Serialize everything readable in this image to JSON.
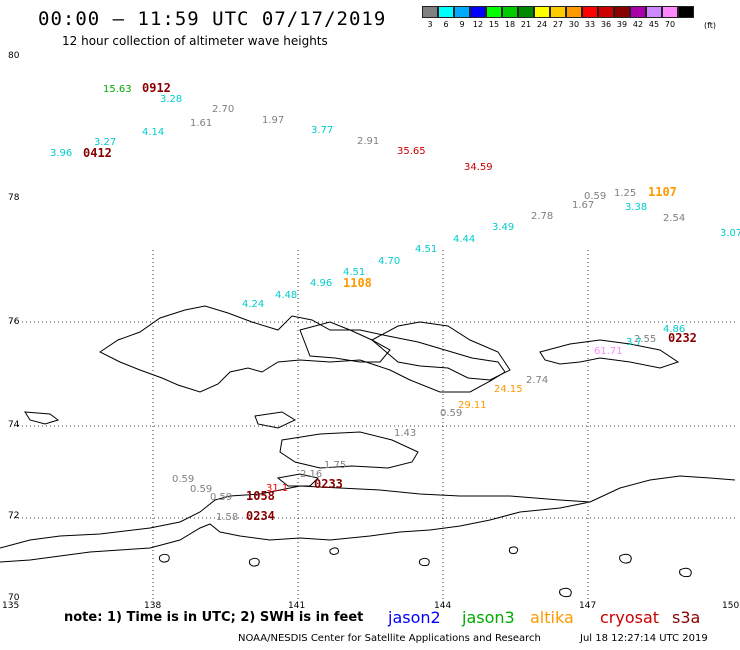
{
  "header": {
    "title": "00:00 – 11:59 UTC 07/17/2019",
    "subtitle": "12 hour collection of altimeter wave heights"
  },
  "legend": {
    "unit": "(ft)",
    "bins": [
      {
        "label": "3",
        "color": "#808080"
      },
      {
        "label": "6",
        "color": "#00ffff"
      },
      {
        "label": "9",
        "color": "#00aaff"
      },
      {
        "label": "12",
        "color": "#0000ff"
      },
      {
        "label": "15",
        "color": "#00ff00"
      },
      {
        "label": "18",
        "color": "#00cc00"
      },
      {
        "label": "21",
        "color": "#008800"
      },
      {
        "label": "24",
        "color": "#ffff00"
      },
      {
        "label": "27",
        "color": "#ffcc00"
      },
      {
        "label": "30",
        "color": "#ff9900"
      },
      {
        "label": "33",
        "color": "#ff0000"
      },
      {
        "label": "36",
        "color": "#cc0000"
      },
      {
        "label": "39",
        "color": "#880000"
      },
      {
        "label": "42",
        "color": "#aa00aa"
      },
      {
        "label": "45",
        "color": "#cc88ff"
      },
      {
        "label": "70",
        "color": "#ff88ff"
      },
      {
        "label": "",
        "color": "#000000"
      }
    ]
  },
  "map": {
    "lat_labels": [
      "80",
      "78",
      "76",
      "74",
      "72",
      "70"
    ],
    "lon_labels": [
      "135",
      "138",
      "141",
      "144",
      "147",
      "150"
    ],
    "wave_heights": [
      {
        "text": "15.63",
        "color": "#00aa00"
      },
      {
        "text": "3.28",
        "color": "#00cccc"
      },
      {
        "text": "2.70",
        "color": "#808080"
      },
      {
        "text": "1.61",
        "color": "#808080"
      },
      {
        "text": "1.97",
        "color": "#808080"
      },
      {
        "text": "3.77",
        "color": "#00cccc"
      },
      {
        "text": "4.14",
        "color": "#00cccc"
      },
      {
        "text": "3.27",
        "color": "#00cccc"
      },
      {
        "text": "3.96",
        "color": "#00cccc"
      },
      {
        "text": "2.91",
        "color": "#808080"
      },
      {
        "text": "35.65",
        "color": "#cc0000"
      },
      {
        "text": "34.59",
        "color": "#cc0000"
      },
      {
        "text": "0.59",
        "color": "#808080"
      },
      {
        "text": "1.25",
        "color": "#808080"
      },
      {
        "text": "1.67",
        "color": "#808080"
      },
      {
        "text": "3.38",
        "color": "#00cccc"
      },
      {
        "text": "2.78",
        "color": "#808080"
      },
      {
        "text": "2.54",
        "color": "#808080"
      },
      {
        "text": "3.07",
        "color": "#00cccc"
      },
      {
        "text": "3.49",
        "color": "#00cccc"
      },
      {
        "text": "4.44",
        "color": "#00cccc"
      },
      {
        "text": "4.51",
        "color": "#00cccc"
      },
      {
        "text": "4.70",
        "color": "#00cccc"
      },
      {
        "text": "4.51",
        "color": "#00cccc"
      },
      {
        "text": "4.96",
        "color": "#00cccc"
      },
      {
        "text": "4.48",
        "color": "#00cccc"
      },
      {
        "text": "4.24",
        "color": "#00cccc"
      },
      {
        "text": "4.86",
        "color": "#00cccc"
      },
      {
        "text": "2.55",
        "color": "#808080"
      },
      {
        "text": "3.7",
        "color": "#00cccc"
      },
      {
        "text": "61.71",
        "color": "#ff88ff"
      },
      {
        "text": "2.74",
        "color": "#808080"
      },
      {
        "text": "24.15",
        "color": "#ff9900"
      },
      {
        "text": "29.11",
        "color": "#ff9900"
      },
      {
        "text": "0.59",
        "color": "#808080"
      },
      {
        "text": "1.43",
        "color": "#808080"
      },
      {
        "text": "1.75",
        "color": "#808080"
      },
      {
        "text": "2.16",
        "color": "#808080"
      },
      {
        "text": "0.59",
        "color": "#808080"
      },
      {
        "text": "0.59",
        "color": "#808080"
      },
      {
        "text": "0.59",
        "color": "#808080"
      },
      {
        "text": "31.1",
        "color": "#ff0000"
      },
      {
        "text": "1.58",
        "color": "#808080"
      }
    ],
    "pass_times": [
      {
        "text": "0912",
        "color": "#880000"
      },
      {
        "text": "0412",
        "color": "#880000"
      },
      {
        "text": "1107",
        "color": "#ff9900"
      },
      {
        "text": "1108",
        "color": "#ff9900"
      },
      {
        "text": "0232",
        "color": "#880000"
      },
      {
        "text": "0233",
        "color": "#880000"
      },
      {
        "text": "1058",
        "color": "#880000"
      },
      {
        "text": "0234",
        "color": "#880000"
      }
    ]
  },
  "footer": {
    "note": "note: 1) Time is in UTC; 2) SWH is in feet",
    "satellites": [
      {
        "name": "jason2",
        "color": "#0000ff"
      },
      {
        "name": "jason3",
        "color": "#00aa00"
      },
      {
        "name": "altika",
        "color": "#ff9900"
      },
      {
        "name": "cryosat",
        "color": "#cc0000"
      },
      {
        "name": "s3a",
        "color": "#880000"
      }
    ],
    "credit": "NOAA/NESDIS Center for Satellite Applications and Research",
    "timestamp": "Jul 18 12:27:14 UTC 2019"
  }
}
